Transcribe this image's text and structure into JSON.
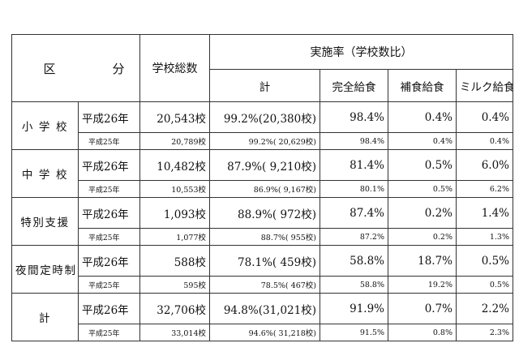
{
  "header": {
    "kubun_left": "区",
    "kubun_right": "分",
    "school_total": "学校総数",
    "rate_title": "実施率（学校数比）",
    "col_total": "計",
    "col_full": "完全給食",
    "col_supp": "補食給食",
    "col_milk": "ミルク給食"
  },
  "rows": [
    {
      "category": "小 学 校",
      "main": {
        "year": "平成26年",
        "count": "20,543校",
        "rate": "99.2%(20,380校)",
        "full": "98.4%",
        "supp": "0.4%",
        "milk": "0.4%"
      },
      "sub": {
        "year": "平成25年",
        "count": "20,789校",
        "rate": "99.2%( 20,629校)",
        "full": "98.4%",
        "supp": "0.4%",
        "milk": "0.4%"
      }
    },
    {
      "category": "中 学 校",
      "main": {
        "year": "平成26年",
        "count": "10,482校",
        "rate": "87.9%( 9,210校)",
        "full": "81.4%",
        "supp": "0.5%",
        "milk": "6.0%"
      },
      "sub": {
        "year": "平成25年",
        "count": "10,553校",
        "rate": "86.9%(   9,167校)",
        "full": "80.1%",
        "supp": "0.5%",
        "milk": "6.2%"
      }
    },
    {
      "category": "特別支援",
      "main": {
        "year": "平成26年",
        "count": "1,093校",
        "rate": "88.9%(     972校)",
        "full": "87.4%",
        "supp": "0.2%",
        "milk": "1.4%"
      },
      "sub": {
        "year": "平成25年",
        "count": "1,077校",
        "rate": "88.7%(        955校)",
        "full": "87.2%",
        "supp": "0.2%",
        "milk": "1.3%"
      }
    },
    {
      "category": "夜間定時制",
      "main": {
        "year": "平成26年",
        "count": "588校",
        "rate": "78.1%(     459校)",
        "full": "58.8%",
        "supp": "18.7%",
        "milk": "0.5%"
      },
      "sub": {
        "year": "平成25年",
        "count": "595校",
        "rate": "78.5%(        467校)",
        "full": "58.8%",
        "supp": "19.2%",
        "milk": "0.5%"
      }
    },
    {
      "category": "計",
      "main": {
        "year": "平成26年",
        "count": "32,706校",
        "rate": "94.8%(31,021校)",
        "full": "91.9%",
        "supp": "0.7%",
        "milk": "2.2%"
      },
      "sub": {
        "year": "平成25年",
        "count": "33,014校",
        "rate": "94.6%( 31,218校)",
        "full": "91.5%",
        "supp": "0.8%",
        "milk": "2.3%"
      }
    }
  ]
}
